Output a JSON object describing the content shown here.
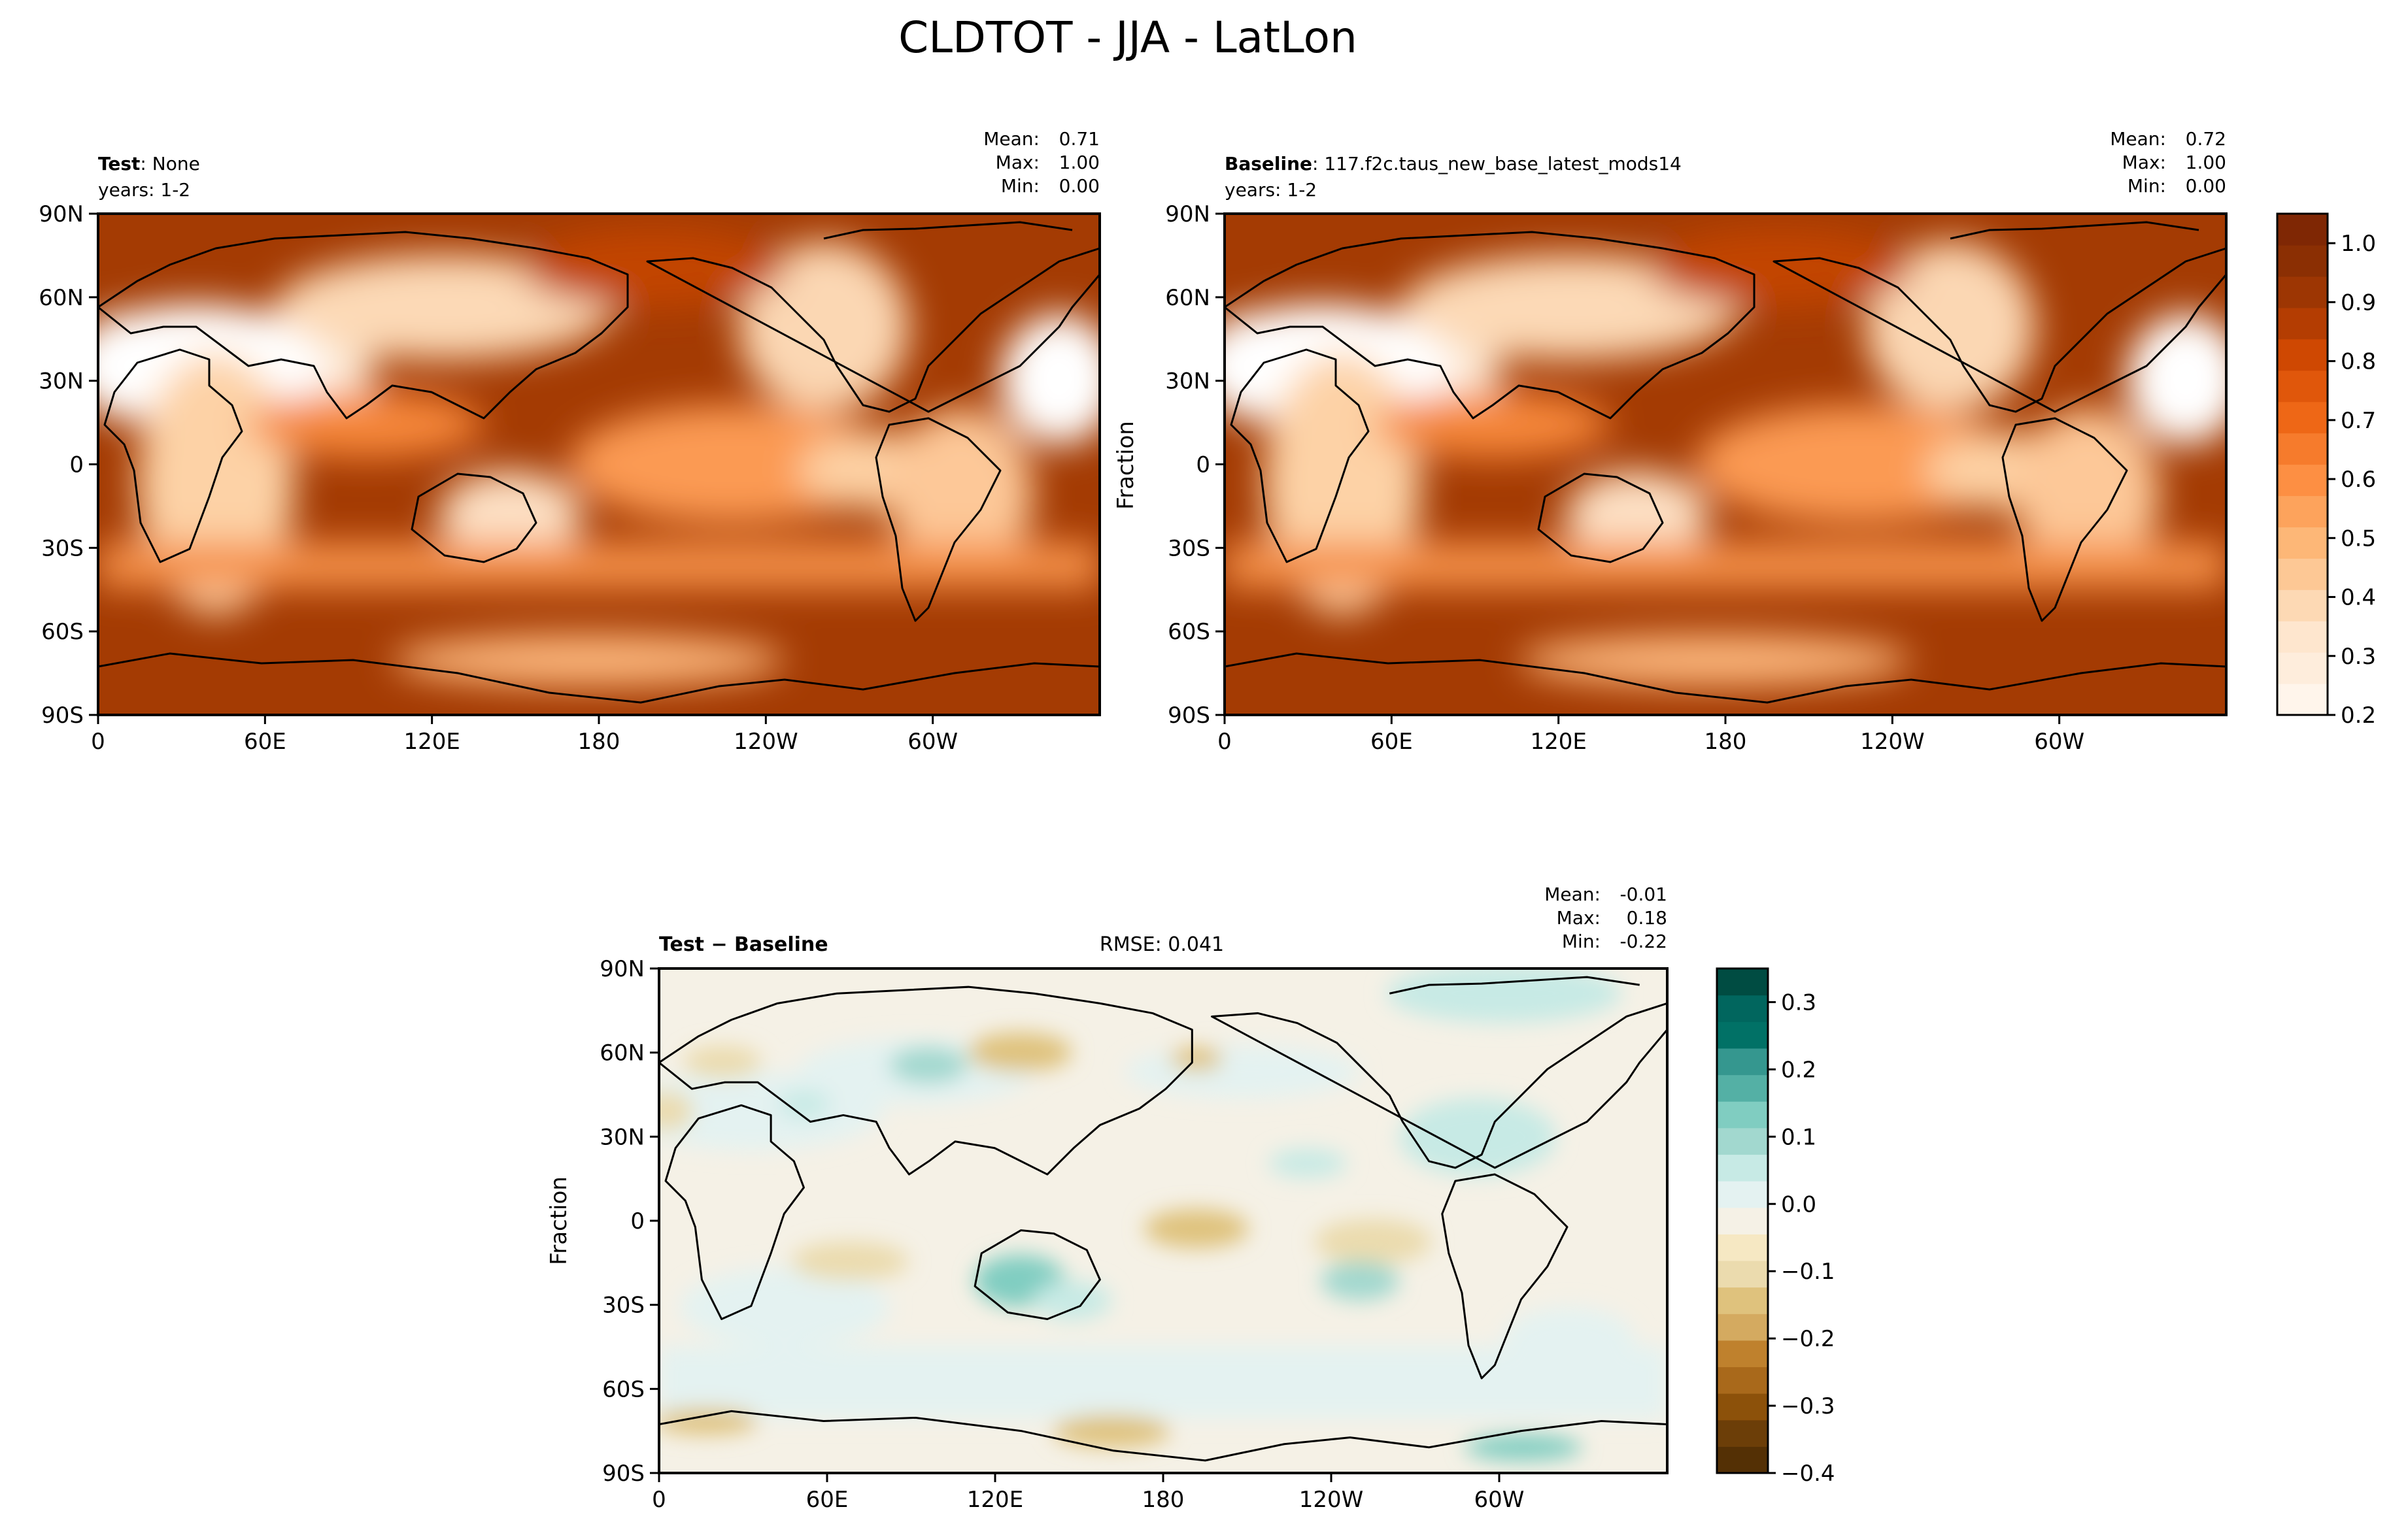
{
  "figure": {
    "title": "CLDTOT - JJA - LatLon"
  },
  "chart_data": [
    {
      "type": "heatmap",
      "panel": "test",
      "label_bold": "Test",
      "label_rest": ": None",
      "years": "years: 1-2",
      "stats": [
        {
          "label": "Mean:",
          "value": "0.71"
        },
        {
          "label": "Max:",
          "value": "1.00"
        },
        {
          "label": "Min:",
          "value": "0.00"
        }
      ],
      "xlim": [
        0,
        360
      ],
      "ylim": [
        -90,
        90
      ],
      "x_ticks": [
        "0",
        "60E",
        "120E",
        "180",
        "120W",
        "60W"
      ],
      "y_ticks": [
        "90N",
        "60N",
        "30N",
        "0",
        "30S",
        "60S",
        "90S"
      ],
      "ylabel": ""
    },
    {
      "type": "heatmap",
      "panel": "baseline",
      "label_bold": "Baseline",
      "label_rest": ": 117.f2c.taus_new_base_latest_mods14",
      "years": "years: 1-2",
      "stats": [
        {
          "label": "Mean:",
          "value": "0.72"
        },
        {
          "label": "Max:",
          "value": "1.00"
        },
        {
          "label": "Min:",
          "value": "0.00"
        }
      ],
      "xlim": [
        0,
        360
      ],
      "ylim": [
        -90,
        90
      ],
      "x_ticks": [
        "0",
        "60E",
        "120E",
        "180",
        "120W",
        "60W"
      ],
      "y_ticks": [
        "90N",
        "60N",
        "30N",
        "0",
        "30S",
        "60S",
        "90S"
      ],
      "ylabel": "Fraction",
      "colorbar": {
        "ticks": [
          "0.2",
          "0.3",
          "0.4",
          "0.5",
          "0.6",
          "0.7",
          "0.8",
          "0.9",
          "1.0"
        ],
        "range": [
          0.2,
          1.05
        ],
        "colors": [
          "#fff5eb",
          "#feeddc",
          "#fee6ce",
          "#fdd9b4",
          "#fdc895",
          "#fdb777",
          "#fda35c",
          "#fd8f43",
          "#f67b2c",
          "#ee6716",
          "#e0570b",
          "#cf4802",
          "#b43d02",
          "#9d3603",
          "#8b2f03",
          "#7f2704"
        ]
      }
    },
    {
      "type": "heatmap",
      "panel": "difference",
      "label_bold": "Test − Baseline",
      "rmse": "RMSE: 0.041",
      "stats": [
        {
          "label": "Mean:",
          "value": "-0.01"
        },
        {
          "label": "Max:",
          "value": "0.18"
        },
        {
          "label": "Min:",
          "value": "-0.22"
        }
      ],
      "xlim": [
        0,
        360
      ],
      "ylim": [
        -90,
        90
      ],
      "x_ticks": [
        "0",
        "60E",
        "120E",
        "180",
        "120W",
        "60W"
      ],
      "y_ticks": [
        "90N",
        "60N",
        "30N",
        "0",
        "30S",
        "60S",
        "90S"
      ],
      "ylabel": "Fraction",
      "colorbar": {
        "ticks": [
          "−0.4",
          "−0.3",
          "−0.2",
          "−0.1",
          "0.0",
          "0.1",
          "0.2",
          "0.3"
        ],
        "range": [
          -0.4,
          0.35
        ],
        "colors": [
          "#543005",
          "#6c3e08",
          "#8c510a",
          "#a9691b",
          "#bf812d",
          "#d4aa60",
          "#dfc27d",
          "#ebdbae",
          "#f6e8c3",
          "#f5f1e6",
          "#e4f2f1",
          "#c7eae5",
          "#a2d8cf",
          "#80cdc1",
          "#54b0a5",
          "#35978f",
          "#017166",
          "#01665e",
          "#004c42"
        ]
      }
    }
  ]
}
